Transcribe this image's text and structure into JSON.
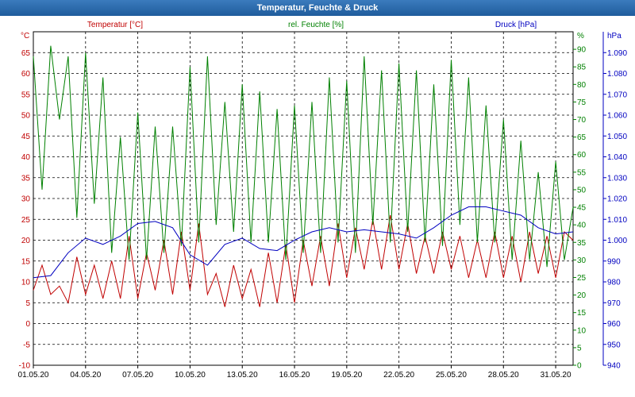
{
  "chart_data": {
    "type": "line",
    "title": "Temperatur, Feuchte & Druck",
    "x_tick_labels": [
      "01.05.20",
      "04.05.20",
      "07.05.20",
      "10.05.20",
      "13.05.20",
      "16.05.20",
      "19.05.20",
      "22.05.20",
      "25.05.20",
      "28.05.20",
      "31.05.20"
    ],
    "x_range": [
      "2020-05-01",
      "2020-06-01"
    ],
    "grid": true,
    "colors": {
      "temperature": "#c00000",
      "humidity": "#008000",
      "pressure": "#0000c0"
    },
    "axes": {
      "temperature": {
        "label": "Temperatur [°C]",
        "unit": "°C",
        "ylim": [
          -10,
          70
        ],
        "ticks": [
          -10,
          -5,
          0,
          5,
          10,
          15,
          20,
          25,
          30,
          35,
          40,
          45,
          50,
          55,
          60,
          65
        ]
      },
      "humidity": {
        "label": "rel. Feuchte [%]",
        "unit": "%",
        "ylim": [
          0,
          95
        ],
        "ticks": [
          0,
          5,
          10,
          15,
          20,
          25,
          30,
          35,
          40,
          45,
          50,
          55,
          60,
          65,
          70,
          75,
          80,
          85,
          90
        ]
      },
      "pressure": {
        "label": "Druck [hPa]",
        "unit": "hPa",
        "ylim": [
          940,
          1100
        ],
        "ticks": [
          "940",
          "950",
          "960",
          "970",
          "980",
          "990",
          "1.000",
          "1.010",
          "1.020",
          "1.030",
          "1.040",
          "1.050",
          "1.060",
          "1.070",
          "1.080",
          "1.090"
        ]
      }
    },
    "series": [
      {
        "name": "Temperatur [°C]",
        "axis": "temperature",
        "x": [
          "2020-05-01",
          "2020-05-01",
          "2020-05-02",
          "2020-05-02",
          "2020-05-03",
          "2020-05-03",
          "2020-05-04",
          "2020-05-04",
          "2020-05-05",
          "2020-05-05",
          "2020-05-06",
          "2020-05-06",
          "2020-05-07",
          "2020-05-07",
          "2020-05-08",
          "2020-05-08",
          "2020-05-09",
          "2020-05-09",
          "2020-05-10",
          "2020-05-10",
          "2020-05-11",
          "2020-05-11",
          "2020-05-12",
          "2020-05-12",
          "2020-05-13",
          "2020-05-13",
          "2020-05-14",
          "2020-05-14",
          "2020-05-15",
          "2020-05-15",
          "2020-05-16",
          "2020-05-16",
          "2020-05-17",
          "2020-05-17",
          "2020-05-18",
          "2020-05-18",
          "2020-05-19",
          "2020-05-19",
          "2020-05-20",
          "2020-05-20",
          "2020-05-21",
          "2020-05-21",
          "2020-05-22",
          "2020-05-22",
          "2020-05-23",
          "2020-05-23",
          "2020-05-24",
          "2020-05-24",
          "2020-05-25",
          "2020-05-25",
          "2020-05-26",
          "2020-05-26",
          "2020-05-27",
          "2020-05-27",
          "2020-05-28",
          "2020-05-28",
          "2020-05-29",
          "2020-05-29",
          "2020-05-30",
          "2020-05-30",
          "2020-05-31",
          "2020-05-31",
          "2020-06-01"
        ],
        "values": [
          8,
          14,
          7,
          9,
          5,
          16,
          7,
          14,
          6,
          15,
          6,
          21,
          6,
          17,
          8,
          20,
          7,
          22,
          8,
          24,
          7,
          12,
          4,
          14,
          6,
          13,
          4,
          17,
          5,
          19,
          5,
          20,
          9,
          21,
          9,
          24,
          11,
          23,
          13,
          25,
          13,
          26,
          13,
          24,
          12,
          21,
          12,
          22,
          13,
          21,
          11,
          20,
          11,
          22,
          11,
          21,
          10,
          22,
          12,
          21,
          11,
          22,
          20
        ]
      },
      {
        "name": "rel. Feuchte [%]",
        "axis": "humidity",
        "x": [
          "2020-05-01",
          "2020-05-01",
          "2020-05-02",
          "2020-05-02",
          "2020-05-03",
          "2020-05-03",
          "2020-05-04",
          "2020-05-04",
          "2020-05-05",
          "2020-05-05",
          "2020-05-06",
          "2020-05-06",
          "2020-05-07",
          "2020-05-07",
          "2020-05-08",
          "2020-05-08",
          "2020-05-09",
          "2020-05-09",
          "2020-05-10",
          "2020-05-10",
          "2020-05-11",
          "2020-05-11",
          "2020-05-12",
          "2020-05-12",
          "2020-05-13",
          "2020-05-13",
          "2020-05-14",
          "2020-05-14",
          "2020-05-15",
          "2020-05-15",
          "2020-05-16",
          "2020-05-16",
          "2020-05-17",
          "2020-05-17",
          "2020-05-18",
          "2020-05-18",
          "2020-05-19",
          "2020-05-19",
          "2020-05-20",
          "2020-05-20",
          "2020-05-21",
          "2020-05-21",
          "2020-05-22",
          "2020-05-22",
          "2020-05-23",
          "2020-05-23",
          "2020-05-24",
          "2020-05-24",
          "2020-05-25",
          "2020-05-25",
          "2020-05-26",
          "2020-05-26",
          "2020-05-27",
          "2020-05-27",
          "2020-05-28",
          "2020-05-28",
          "2020-05-29",
          "2020-05-29",
          "2020-05-30",
          "2020-05-30",
          "2020-05-31",
          "2020-05-31",
          "2020-06-01"
        ],
        "values": [
          88,
          50,
          91,
          70,
          88,
          42,
          89,
          46,
          82,
          32,
          65,
          30,
          72,
          30,
          68,
          32,
          68,
          34,
          85,
          35,
          88,
          40,
          75,
          38,
          80,
          35,
          78,
          35,
          73,
          30,
          74,
          32,
          75,
          32,
          82,
          35,
          81,
          32,
          88,
          40,
          84,
          35,
          86,
          38,
          84,
          35,
          80,
          34,
          87,
          40,
          82,
          35,
          74,
          35,
          70,
          30,
          64,
          30,
          55,
          28,
          58,
          30,
          45
        ]
      },
      {
        "name": "Druck [hPa]",
        "axis": "pressure",
        "x": [
          "2020-05-01",
          "2020-05-02",
          "2020-05-03",
          "2020-05-04",
          "2020-05-05",
          "2020-05-06",
          "2020-05-07",
          "2020-05-08",
          "2020-05-09",
          "2020-05-10",
          "2020-05-11",
          "2020-05-12",
          "2020-05-13",
          "2020-05-14",
          "2020-05-15",
          "2020-05-16",
          "2020-05-17",
          "2020-05-18",
          "2020-05-19",
          "2020-05-20",
          "2020-05-21",
          "2020-05-22",
          "2020-05-23",
          "2020-05-24",
          "2020-05-25",
          "2020-05-26",
          "2020-05-27",
          "2020-05-28",
          "2020-05-29",
          "2020-05-30",
          "2020-05-31",
          "2020-06-01"
        ],
        "values": [
          982,
          983,
          994,
          1001,
          998,
          1002,
          1008,
          1009,
          1006,
          993,
          988,
          998,
          1001,
          996,
          995,
          1000,
          1004,
          1006,
          1004,
          1005,
          1004,
          1003,
          1001,
          1006,
          1012,
          1016,
          1016,
          1014,
          1012,
          1006,
          1003,
          1004
        ]
      }
    ]
  }
}
